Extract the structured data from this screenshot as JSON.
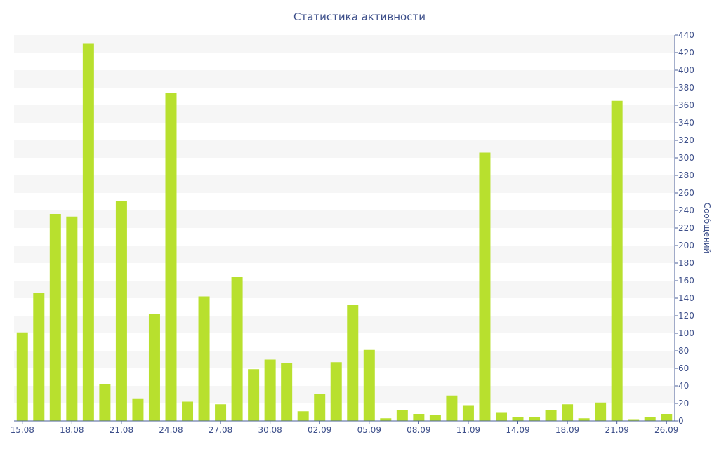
{
  "chart_data": {
    "type": "bar",
    "title": "Статистика активности",
    "xlabel": "",
    "ylabel": "Сообщений",
    "ylim": [
      0,
      440
    ],
    "y_tick_step": 20,
    "y_axis_side": "right",
    "grid": "alternating horizontal bands",
    "legend": "none",
    "x_tick_labels": [
      "15.08",
      "18.08",
      "21.08",
      "24.08",
      "27.08",
      "30.08",
      "02.09",
      "05.09",
      "08.09",
      "11.09",
      "14.09",
      "18.09",
      "21.09",
      "26.09"
    ],
    "series": [
      {
        "values": [
          101,
          146,
          236,
          233,
          430,
          42,
          251,
          25,
          122,
          374,
          22,
          142,
          19,
          164,
          59,
          70,
          66,
          11,
          31,
          67,
          132,
          81,
          3,
          12,
          8,
          7,
          29,
          18,
          306,
          10,
          4,
          4,
          12,
          19,
          3,
          21,
          365,
          2,
          4,
          8
        ],
        "color": "#b8e02e"
      }
    ]
  },
  "colors": {
    "bar": "#b8e02e",
    "text": "#3d4f8a",
    "axis": "#4a5f9a",
    "band": "#f6f6f6"
  }
}
